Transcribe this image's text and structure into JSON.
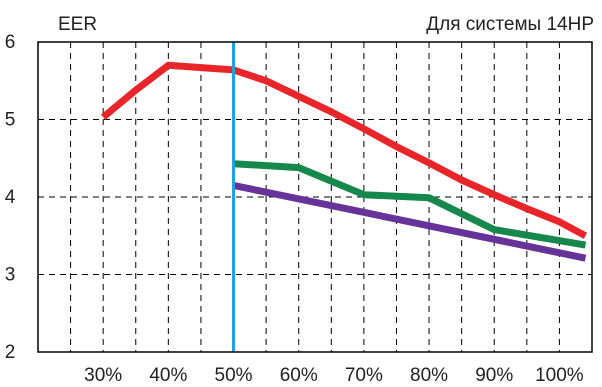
{
  "chart_data": {
    "type": "line",
    "title": "Для системы 14HP",
    "ylabel": "EER",
    "xlabel": "",
    "x_ticks": [
      "30%",
      "40%",
      "50%",
      "60%",
      "70%",
      "80%",
      "90%",
      "100%"
    ],
    "xlim": [
      20,
      105
    ],
    "ylim": [
      2,
      6
    ],
    "y_ticks": [
      "2",
      "3",
      "4",
      "5",
      "6"
    ],
    "grid": true,
    "marker_x": 50,
    "marker_color": "#1aa3e0",
    "series": [
      {
        "color": "#e8262a",
        "points": [
          [
            30,
            5.03
          ],
          [
            35,
            5.38
          ],
          [
            40,
            5.7
          ],
          [
            45,
            5.67
          ],
          [
            50,
            5.64
          ],
          [
            55,
            5.5
          ],
          [
            60,
            5.3
          ],
          [
            65,
            5.1
          ],
          [
            70,
            4.88
          ],
          [
            75,
            4.65
          ],
          [
            80,
            4.44
          ],
          [
            85,
            4.22
          ],
          [
            90,
            4.03
          ],
          [
            95,
            3.85
          ],
          [
            100,
            3.68
          ],
          [
            104,
            3.5
          ]
        ]
      },
      {
        "color": "#16884c",
        "points": [
          [
            50,
            4.43
          ],
          [
            60,
            4.38
          ],
          [
            70,
            4.03
          ],
          [
            80,
            3.99
          ],
          [
            90,
            3.58
          ],
          [
            104,
            3.38
          ]
        ]
      },
      {
        "color": "#663399",
        "points": [
          [
            50,
            4.15
          ],
          [
            104,
            3.21
          ]
        ]
      }
    ]
  }
}
